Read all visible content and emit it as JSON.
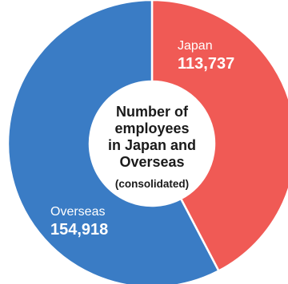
{
  "chart_data": {
    "type": "pie",
    "style": "donut",
    "center_title": [
      "Number of",
      "employees",
      "in Japan and",
      "Overseas"
    ],
    "center_subtitle": "(consolidated)",
    "slices": [
      {
        "label": "Japan",
        "value": 113737,
        "value_text": "113,737",
        "color": "#f05a55"
      },
      {
        "label": "Overseas",
        "value": 154918,
        "value_text": "154,918",
        "color": "#3a7cc5"
      }
    ],
    "start": "top",
    "direction": "clockwise",
    "gap_color": "#ffffff"
  }
}
